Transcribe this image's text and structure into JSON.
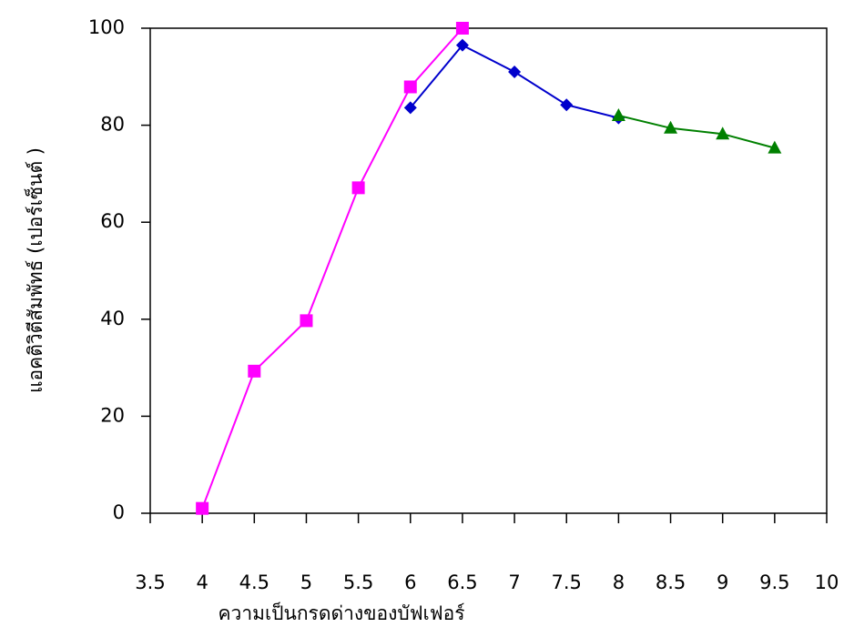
{
  "chart_data": {
    "type": "line",
    "x_label": "ความเป็นกรดด่างของบัฟเฟอร์",
    "y_label": "แอคติวิตีสัมพัทธ์ (เปอร์เซ็นต์ )",
    "xlim": [
      3.5,
      10
    ],
    "xticks": [
      3.5,
      4,
      4.5,
      5,
      5.5,
      6,
      6.5,
      7,
      7.5,
      8,
      8.5,
      9,
      9.5,
      10
    ],
    "ylim": [
      0,
      100
    ],
    "yticks": [
      0,
      20,
      40,
      60,
      80,
      100
    ],
    "series": [
      {
        "color": "#ff00ff",
        "marker": "square",
        "x": [
          4,
          4.5,
          5,
          5.5,
          6,
          6.5
        ],
        "values": [
          1,
          29.3,
          39.7,
          67.1,
          87.9,
          100
        ]
      },
      {
        "color": "#0000cc",
        "marker": "diamond",
        "x": [
          6,
          6.5,
          7,
          7.5,
          8
        ],
        "values": [
          83.6,
          96.5,
          91,
          84.2,
          81.5
        ]
      },
      {
        "color": "#008000",
        "marker": "triangle",
        "x": [
          8,
          8.5,
          9,
          9.5
        ],
        "values": [
          82,
          79.4,
          78.2,
          75.3
        ]
      }
    ]
  }
}
